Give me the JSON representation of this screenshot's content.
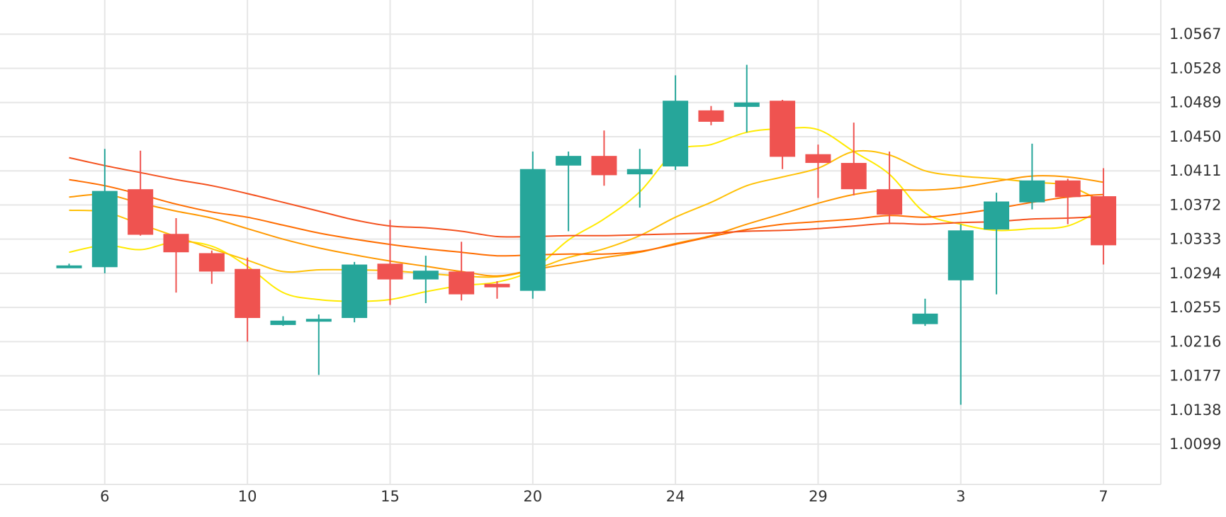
{
  "chart_data": {
    "type": "candlestick",
    "title": "",
    "xlabel": "",
    "ylabel": "",
    "ylim": [
      1.0053,
      1.0606
    ],
    "grid": true,
    "y_ticks": [
      1.0567,
      1.0528,
      1.0489,
      1.045,
      1.0411,
      1.0372,
      1.0333,
      1.0294,
      1.0255,
      1.0216,
      1.0177,
      1.0138,
      1.0099
    ],
    "y_tick_labels": [
      "1.0567",
      "1.0528",
      "1.0489",
      "1.0450",
      "1.0411",
      "1.0372",
      "1.0333",
      "1.0294",
      "1.0255",
      "1.0216",
      "1.0177",
      "1.0138",
      "1.0099"
    ],
    "x_tick_labels": [
      {
        "label": "6",
        "index": 1
      },
      {
        "label": "10",
        "index": 5
      },
      {
        "label": "15",
        "index": 9
      },
      {
        "label": "20",
        "index": 13
      },
      {
        "label": "24",
        "index": 17
      },
      {
        "label": "29",
        "index": 21
      },
      {
        "label": "3",
        "index": 25
      },
      {
        "label": "7",
        "index": 29
      }
    ],
    "candles": [
      {
        "open": 1.03,
        "high": 1.0305,
        "low": 1.03,
        "close": 1.0303
      },
      {
        "open": 1.0301,
        "high": 1.0436,
        "low": 1.0294,
        "close": 1.0388
      },
      {
        "open": 1.039,
        "high": 1.0434,
        "low": 1.0337,
        "close": 1.0338
      },
      {
        "open": 1.0339,
        "high": 1.0357,
        "low": 1.0272,
        "close": 1.0318
      },
      {
        "open": 1.0317,
        "high": 1.032,
        "low": 1.0282,
        "close": 1.0296
      },
      {
        "open": 1.0299,
        "high": 1.0312,
        "low": 1.0216,
        "close": 1.0243
      },
      {
        "open": 1.0235,
        "high": 1.0245,
        "low": 1.0234,
        "close": 1.024
      },
      {
        "open": 1.0239,
        "high": 1.0247,
        "low": 1.0178,
        "close": 1.0242
      },
      {
        "open": 1.0243,
        "high": 1.0307,
        "low": 1.0238,
        "close": 1.0304
      },
      {
        "open": 1.0305,
        "high": 1.0355,
        "low": 1.0258,
        "close": 1.0287
      },
      {
        "open": 1.0287,
        "high": 1.0314,
        "low": 1.026,
        "close": 1.0297
      },
      {
        "open": 1.0296,
        "high": 1.033,
        "low": 1.0263,
        "close": 1.027
      },
      {
        "open": 1.0282,
        "high": 1.0285,
        "low": 1.0265,
        "close": 1.0278
      },
      {
        "open": 1.0274,
        "high": 1.0433,
        "low": 1.0265,
        "close": 1.0413
      },
      {
        "open": 1.0417,
        "high": 1.0433,
        "low": 1.0342,
        "close": 1.0428
      },
      {
        "open": 1.0428,
        "high": 1.0457,
        "low": 1.0394,
        "close": 1.0406
      },
      {
        "open": 1.0407,
        "high": 1.0436,
        "low": 1.0369,
        "close": 1.0413
      },
      {
        "open": 1.0416,
        "high": 1.052,
        "low": 1.0412,
        "close": 1.0491
      },
      {
        "open": 1.048,
        "high": 1.0485,
        "low": 1.0463,
        "close": 1.0467
      },
      {
        "open": 1.0484,
        "high": 1.0532,
        "low": 1.0455,
        "close": 1.0489
      },
      {
        "open": 1.0491,
        "high": 1.0492,
        "low": 1.0413,
        "close": 1.0427
      },
      {
        "open": 1.043,
        "high": 1.0441,
        "low": 1.038,
        "close": 1.042
      },
      {
        "open": 1.042,
        "high": 1.0466,
        "low": 1.0383,
        "close": 1.039
      },
      {
        "open": 1.039,
        "high": 1.0433,
        "low": 1.035,
        "close": 1.0361
      },
      {
        "open": 1.0236,
        "high": 1.0265,
        "low": 1.0234,
        "close": 1.0248
      },
      {
        "open": 1.0286,
        "high": 1.035,
        "low": 1.0144,
        "close": 1.0343
      },
      {
        "open": 1.0344,
        "high": 1.0386,
        "low": 1.027,
        "close": 1.0376
      },
      {
        "open": 1.0375,
        "high": 1.0442,
        "low": 1.0367,
        "close": 1.04
      },
      {
        "open": 1.04,
        "high": 1.0402,
        "low": 1.035,
        "close": 1.0381
      },
      {
        "open": 1.0382,
        "high": 1.0414,
        "low": 1.0304,
        "close": 1.0326
      }
    ],
    "series": [
      {
        "color": "#ffea00",
        "values": [
          1.0318,
          1.0326,
          1.0321,
          1.033,
          1.0325,
          1.0302,
          1.0272,
          1.0264,
          1.0262,
          1.0264,
          1.0273,
          1.028,
          1.0284,
          1.0298,
          1.0332,
          1.0356,
          1.0387,
          1.0433,
          1.0441,
          1.0455,
          1.0459,
          1.0458,
          1.0433,
          1.0407,
          1.0363,
          1.035,
          1.0343,
          1.0345,
          1.0348,
          1.0368
        ]
      },
      {
        "color": "#ffc107",
        "values": [
          1.0366,
          1.0364,
          1.035,
          1.0336,
          1.0322,
          1.0309,
          1.0296,
          1.0298,
          1.0298,
          1.0297,
          1.0294,
          1.0291,
          1.029,
          1.0298,
          1.0312,
          1.0322,
          1.0337,
          1.0358,
          1.0375,
          1.0394,
          1.0404,
          1.0414,
          1.0433,
          1.0429,
          1.0411,
          1.0405,
          1.0402,
          1.0398,
          1.0394,
          1.0375
        ]
      },
      {
        "color": "#ff9800",
        "values": [
          1.0381,
          1.0384,
          1.0374,
          1.0365,
          1.0357,
          1.0345,
          1.0333,
          1.0323,
          1.0315,
          1.0308,
          1.0302,
          1.0296,
          1.0291,
          1.0298,
          1.0305,
          1.0312,
          1.0318,
          1.0328,
          1.0337,
          1.035,
          1.0362,
          1.0374,
          1.0384,
          1.0389,
          1.0389,
          1.0392,
          1.0399,
          1.0405,
          1.0404,
          1.0398
        ]
      },
      {
        "color": "#ff6d00",
        "values": [
          1.0401,
          1.0394,
          1.0384,
          1.0373,
          1.0364,
          1.0358,
          1.0349,
          1.034,
          1.0333,
          1.0327,
          1.0322,
          1.0318,
          1.0314,
          1.0315,
          1.0316,
          1.0316,
          1.0319,
          1.0327,
          1.0336,
          1.0344,
          1.035,
          1.0353,
          1.0356,
          1.036,
          1.0358,
          1.0362,
          1.0368,
          1.0375,
          1.0381,
          1.0384
        ]
      },
      {
        "color": "#f4511e",
        "values": [
          1.0426,
          1.0417,
          1.0409,
          1.0401,
          1.0394,
          1.0385,
          1.0375,
          1.0365,
          1.0355,
          1.0348,
          1.0346,
          1.0342,
          1.0336,
          1.0336,
          1.0337,
          1.0337,
          1.0338,
          1.0339,
          1.034,
          1.0342,
          1.0343,
          1.0345,
          1.0348,
          1.0351,
          1.035,
          1.0352,
          1.0353,
          1.0356,
          1.0357,
          1.0359
        ]
      }
    ],
    "up_color": "#26a69a",
    "down_color": "#ef5350",
    "grid_color": "#e6e6e6"
  }
}
